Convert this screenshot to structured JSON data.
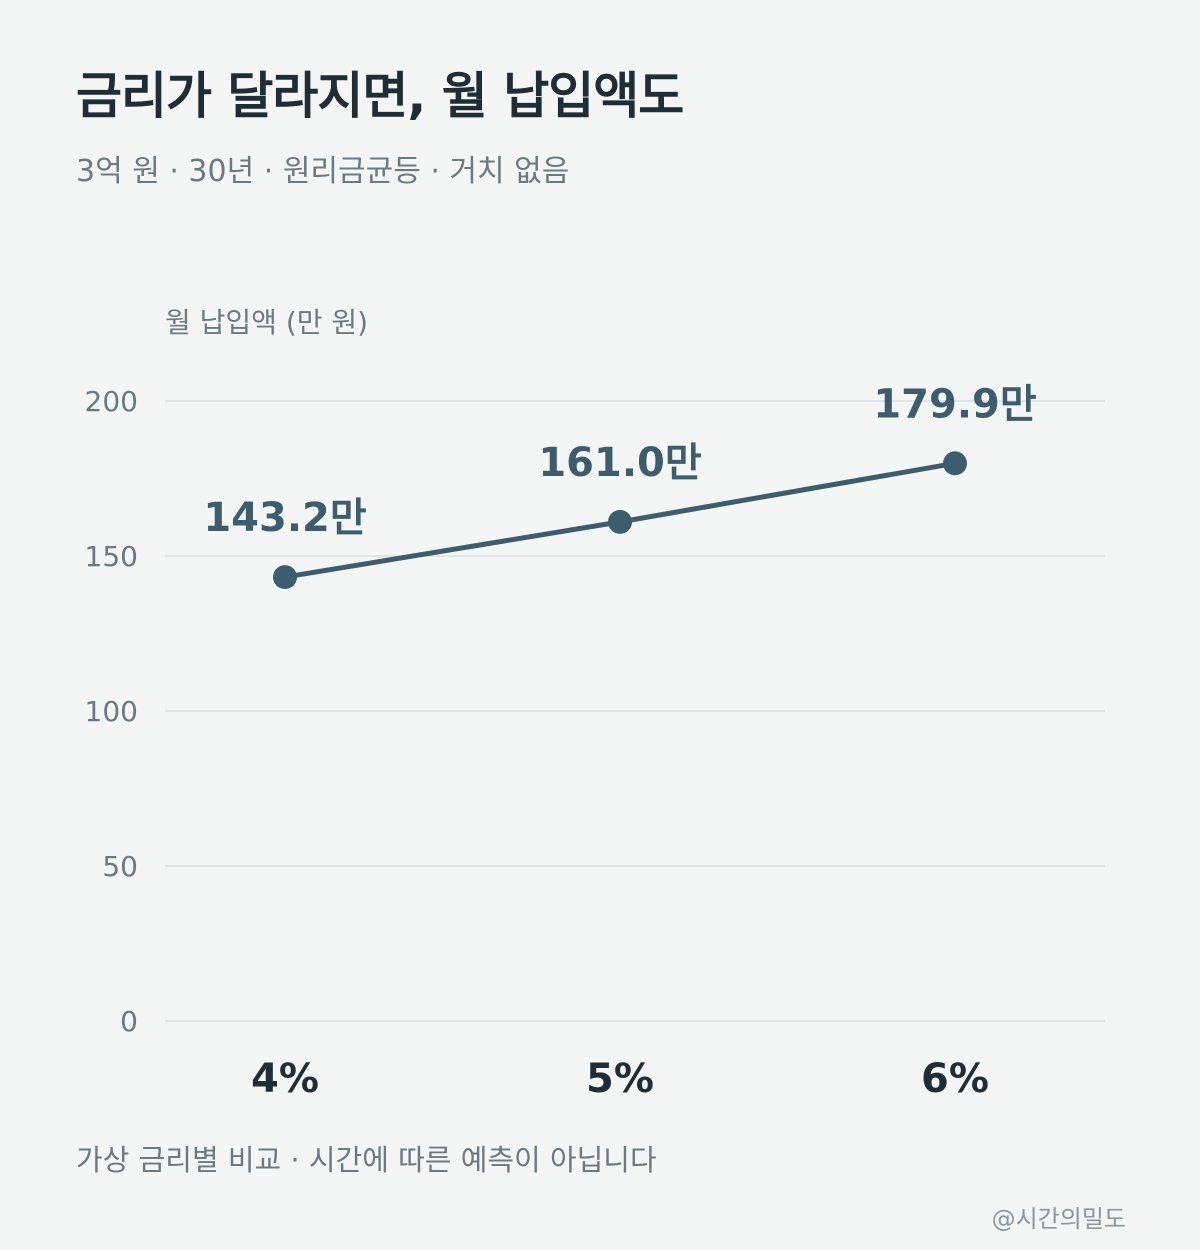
{
  "header": {
    "title": "금리가 달라지면, 월 납입액도",
    "subtitle": "3억 원 · 30년 · 원리금균등 · 거치 없음"
  },
  "chart_data": {
    "type": "line",
    "ylabel": "월 납입액 (만 원)",
    "xlabel": "",
    "categories": [
      "4%",
      "5%",
      "6%"
    ],
    "values": [
      143.2,
      161.0,
      179.9
    ],
    "data_labels": [
      "143.2만",
      "161.0만",
      "179.9만"
    ],
    "ylim": [
      0,
      200
    ],
    "yticks": [
      0,
      50,
      100,
      150,
      200
    ],
    "ytick_labels": [
      "0",
      "50",
      "100",
      "150",
      "200"
    ],
    "grid": true,
    "colors": {
      "line": "#3d5d6e",
      "grid": "#dcdfe0",
      "tick": "#6b7a80",
      "category": "#1f2d35"
    }
  },
  "footer": {
    "note": "가상 금리별 비교 · 시간에 따른 예측이 아닙니다",
    "credit": "@시간의밀도"
  }
}
